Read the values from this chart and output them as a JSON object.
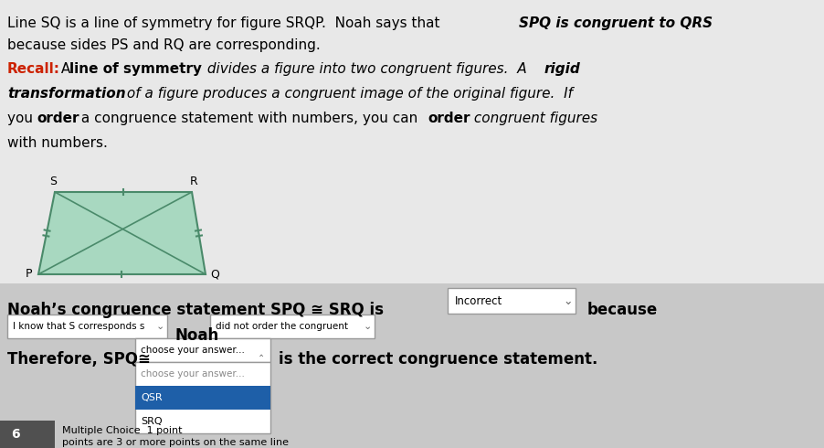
{
  "bg_color": "#c8c8c8",
  "shape_fill": "#a8d8c0",
  "shape_edge": "#4a8a6a",
  "noahs_stmt": "Noah’s congruence statement SPQ ≅ SRQ is",
  "incorrect_box": "Incorrect",
  "because": "because",
  "dropdown1_label": "I know that S corresponds s",
  "noah_label": "Noah",
  "dropdown2_label": "did not order the congruent",
  "therefore_text": "Therefore, SPQ≅",
  "dropdown3_label": "choose your answer...",
  "correct_text": "is the correct congruence statement.",
  "dropdown_open_items": [
    "choose your answer...",
    "QSR",
    "SRQ"
  ],
  "dropdown_highlight": 1,
  "footer_num": "6",
  "footer_label": "Multiple Choice  1 point",
  "footer_text": "points are 3 or more points on the same line"
}
